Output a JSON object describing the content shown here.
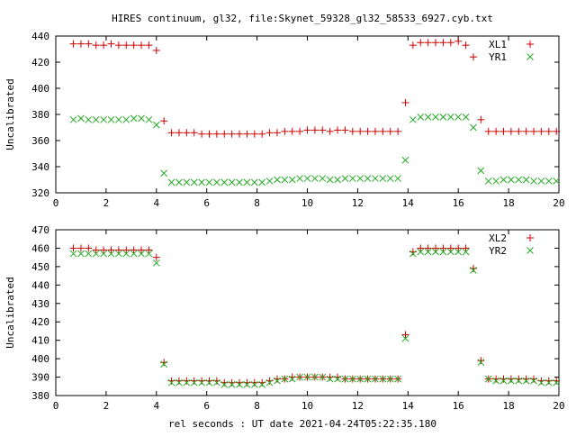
{
  "title": "HIRES continuum, gl32, file:Skynet_59328_gl32_58533_6927.cyb.txt",
  "xlabel": "rel seconds : UT date 2021-04-24T05:22:35.180",
  "colors": {
    "plus": "#cc0000",
    "cross": "#22aa22"
  },
  "chart_data": [
    {
      "type": "scatter",
      "ylabel": "Uncalibrated",
      "xlim": [
        0,
        20
      ],
      "ylim": [
        320,
        440
      ],
      "xticks": [
        "0",
        "2",
        "4",
        "6",
        "8",
        "10",
        "12",
        "14",
        "16",
        "18",
        "20"
      ],
      "xtick_values": [
        0,
        2,
        4,
        6,
        8,
        10,
        12,
        14,
        16,
        18,
        20
      ],
      "yticks": [
        "320",
        "340",
        "360",
        "380",
        "400",
        "420",
        "440"
      ],
      "ytick_values": [
        320,
        340,
        360,
        380,
        400,
        420,
        440
      ],
      "legend_position": "top-right",
      "series": [
        {
          "name": "XL1",
          "marker": "plus",
          "x": [
            0.7,
            1.0,
            1.3,
            1.6,
            1.9,
            2.2,
            2.5,
            2.8,
            3.1,
            3.4,
            3.7,
            4.0,
            4.3,
            4.6,
            4.9,
            5.2,
            5.5,
            5.8,
            6.1,
            6.4,
            6.7,
            7.0,
            7.3,
            7.6,
            7.9,
            8.2,
            8.5,
            8.8,
            9.1,
            9.4,
            9.7,
            10.0,
            10.3,
            10.6,
            10.9,
            11.2,
            11.5,
            11.8,
            12.1,
            12.4,
            12.7,
            13.0,
            13.3,
            13.6,
            13.9,
            14.2,
            14.5,
            14.8,
            15.1,
            15.4,
            15.7,
            16.0,
            16.3,
            16.6,
            16.9,
            17.2,
            17.5,
            17.8,
            18.1,
            18.4,
            18.7,
            19.0,
            19.3,
            19.6,
            19.9
          ],
          "y": [
            434,
            434,
            434,
            433,
            433,
            434,
            433,
            433,
            433,
            433,
            433,
            429,
            375,
            366,
            366,
            366,
            366,
            365,
            365,
            365,
            365,
            365,
            365,
            365,
            365,
            365,
            366,
            366,
            367,
            367,
            367,
            368,
            368,
            368,
            367,
            368,
            368,
            367,
            367,
            367,
            367,
            367,
            367,
            367,
            389,
            433,
            435,
            435,
            435,
            435,
            435,
            436,
            433,
            424,
            376,
            367,
            367,
            367,
            367,
            367,
            367,
            367,
            367,
            367,
            367
          ]
        },
        {
          "name": "YR1",
          "marker": "cross",
          "x": [
            0.7,
            1.0,
            1.3,
            1.6,
            1.9,
            2.2,
            2.5,
            2.8,
            3.1,
            3.4,
            3.7,
            4.0,
            4.3,
            4.6,
            4.9,
            5.2,
            5.5,
            5.8,
            6.1,
            6.4,
            6.7,
            7.0,
            7.3,
            7.6,
            7.9,
            8.2,
            8.5,
            8.8,
            9.1,
            9.4,
            9.7,
            10.0,
            10.3,
            10.6,
            10.9,
            11.2,
            11.5,
            11.8,
            12.1,
            12.4,
            12.7,
            13.0,
            13.3,
            13.6,
            13.9,
            14.2,
            14.5,
            14.8,
            15.1,
            15.4,
            15.7,
            16.0,
            16.3,
            16.6,
            16.9,
            17.2,
            17.5,
            17.8,
            18.1,
            18.4,
            18.7,
            19.0,
            19.3,
            19.6,
            19.9
          ],
          "y": [
            376,
            377,
            376,
            376,
            376,
            376,
            376,
            376,
            377,
            377,
            376,
            372,
            335,
            328,
            328,
            328,
            328,
            328,
            328,
            328,
            328,
            328,
            328,
            328,
            328,
            328,
            329,
            330,
            330,
            330,
            331,
            331,
            331,
            331,
            330,
            330,
            331,
            331,
            331,
            331,
            331,
            331,
            331,
            331,
            345,
            376,
            378,
            378,
            378,
            378,
            378,
            378,
            378,
            370,
            337,
            329,
            329,
            330,
            330,
            330,
            330,
            329,
            329,
            329,
            329
          ]
        }
      ]
    },
    {
      "type": "scatter",
      "ylabel": "Uncalibrated",
      "xlim": [
        0,
        20
      ],
      "ylim": [
        380,
        470
      ],
      "xticks": [
        "0",
        "2",
        "4",
        "6",
        "8",
        "10",
        "12",
        "14",
        "16",
        "18",
        "20"
      ],
      "xtick_values": [
        0,
        2,
        4,
        6,
        8,
        10,
        12,
        14,
        16,
        18,
        20
      ],
      "yticks": [
        "380",
        "390",
        "400",
        "410",
        "420",
        "430",
        "440",
        "450",
        "460",
        "470"
      ],
      "ytick_values": [
        380,
        390,
        400,
        410,
        420,
        430,
        440,
        450,
        460,
        470
      ],
      "legend_position": "top-right",
      "series": [
        {
          "name": "XL2",
          "marker": "plus",
          "x": [
            0.7,
            1.0,
            1.3,
            1.6,
            1.9,
            2.2,
            2.5,
            2.8,
            3.1,
            3.4,
            3.7,
            4.0,
            4.3,
            4.6,
            4.9,
            5.2,
            5.5,
            5.8,
            6.1,
            6.4,
            6.7,
            7.0,
            7.3,
            7.6,
            7.9,
            8.2,
            8.5,
            8.8,
            9.1,
            9.4,
            9.7,
            10.0,
            10.3,
            10.6,
            10.9,
            11.2,
            11.5,
            11.8,
            12.1,
            12.4,
            12.7,
            13.0,
            13.3,
            13.6,
            13.9,
            14.2,
            14.5,
            14.8,
            15.1,
            15.4,
            15.7,
            16.0,
            16.3,
            16.6,
            16.9,
            17.2,
            17.5,
            17.8,
            18.1,
            18.4,
            18.7,
            19.0,
            19.3,
            19.6,
            19.9
          ],
          "y": [
            460,
            460,
            460,
            459,
            459,
            459,
            459,
            459,
            459,
            459,
            459,
            455,
            398,
            388,
            388,
            388,
            388,
            388,
            388,
            388,
            387,
            387,
            387,
            387,
            387,
            387,
            388,
            389,
            389,
            390,
            390,
            390,
            390,
            390,
            390,
            390,
            389,
            389,
            389,
            389,
            389,
            389,
            389,
            389,
            413,
            458,
            460,
            460,
            460,
            460,
            460,
            460,
            460,
            449,
            399,
            389,
            389,
            389,
            389,
            389,
            389,
            389,
            388,
            388,
            388
          ]
        },
        {
          "name": "YR2",
          "marker": "cross",
          "x": [
            0.7,
            1.0,
            1.3,
            1.6,
            1.9,
            2.2,
            2.5,
            2.8,
            3.1,
            3.4,
            3.7,
            4.0,
            4.3,
            4.6,
            4.9,
            5.2,
            5.5,
            5.8,
            6.1,
            6.4,
            6.7,
            7.0,
            7.3,
            7.6,
            7.9,
            8.2,
            8.5,
            8.8,
            9.1,
            9.4,
            9.7,
            10.0,
            10.3,
            10.6,
            10.9,
            11.2,
            11.5,
            11.8,
            12.1,
            12.4,
            12.7,
            13.0,
            13.3,
            13.6,
            13.9,
            14.2,
            14.5,
            14.8,
            15.1,
            15.4,
            15.7,
            16.0,
            16.3,
            16.6,
            16.9,
            17.2,
            17.5,
            17.8,
            18.1,
            18.4,
            18.7,
            19.0,
            19.3,
            19.6,
            19.9
          ],
          "y": [
            457,
            457,
            457,
            457,
            457,
            457,
            457,
            457,
            457,
            457,
            457,
            452,
            397,
            387,
            387,
            387,
            387,
            387,
            387,
            387,
            386,
            386,
            386,
            386,
            386,
            386,
            387,
            388,
            389,
            389,
            390,
            390,
            390,
            390,
            389,
            389,
            389,
            389,
            389,
            389,
            389,
            389,
            389,
            389,
            411,
            457,
            458,
            458,
            458,
            458,
            458,
            458,
            458,
            448,
            398,
            389,
            388,
            388,
            388,
            388,
            388,
            388,
            387,
            387,
            387
          ]
        }
      ]
    }
  ]
}
